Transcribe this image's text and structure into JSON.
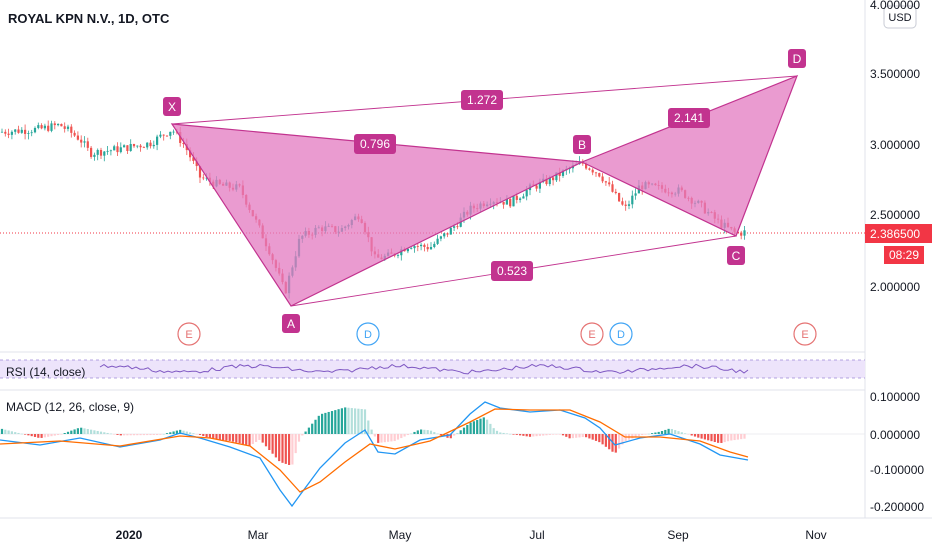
{
  "header": {
    "symbol_title": "ROYAL KPN N.V., 1D, OTC",
    "currency_button": "USD"
  },
  "price_axis": {
    "ticks": [
      "4.000000",
      "3.500000",
      "3.000000",
      "2.500000",
      "2.000000"
    ],
    "last_price": "2.386500",
    "countdown": "08:29",
    "last_price_color": "#f23645"
  },
  "time_axis": {
    "ticks": [
      "2020",
      "Mar",
      "May",
      "Jul",
      "Sep",
      "Nov"
    ]
  },
  "pattern": {
    "fill_color": "#e37ac0",
    "points": [
      {
        "label": "X",
        "price": 3.14
      },
      {
        "label": "A",
        "price": 1.85
      },
      {
        "label": "B",
        "price": 2.88
      },
      {
        "label": "C",
        "price": 2.35
      },
      {
        "label": "D",
        "price": 3.48
      }
    ],
    "ratios": [
      "1.272",
      "0.796",
      "2.141",
      "0.523"
    ]
  },
  "events": [
    {
      "type": "E",
      "color": "#e57373"
    },
    {
      "type": "D",
      "color": "#42a5f5"
    },
    {
      "type": "E",
      "color": "#e57373"
    },
    {
      "type": "D",
      "color": "#42a5f5"
    },
    {
      "type": "E",
      "color": "#e57373"
    }
  ],
  "rsi": {
    "label": "RSI (14, close)",
    "line_color": "#7e57c2"
  },
  "macd": {
    "label": "MACD (12, 26, close, 9)",
    "ticks": [
      "0.100000",
      "0.000000",
      "-0.100000",
      "-0.200000"
    ],
    "macd_color": "#2196f3",
    "signal_color": "#ff6d00"
  }
}
